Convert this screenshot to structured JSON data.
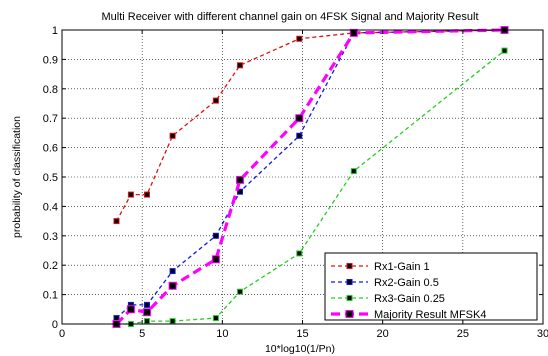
{
  "chart_data": {
    "type": "line",
    "title": "Multi Receiver with different channel gain on 4FSK Signal and Majority Result",
    "xlabel": "10*log10(1/Pn)",
    "ylabel": "probability of classification",
    "xlim": [
      0,
      30
    ],
    "ylim": [
      0,
      1
    ],
    "xticks": [
      0,
      5,
      10,
      15,
      20,
      25,
      30
    ],
    "yticks": [
      0,
      0.1,
      0.2,
      0.3,
      0.4,
      0.5,
      0.6,
      0.7,
      0.8,
      0.9,
      1
    ],
    "xtick_labels": [
      "0",
      "5",
      "10",
      "15",
      "20",
      "25",
      "30"
    ],
    "ytick_labels": [
      "0",
      "0.1",
      "0.2",
      "0.3",
      "0.4",
      "0.5",
      "0.6",
      "0.7",
      "0.8",
      "0.9",
      "1"
    ],
    "grid": true,
    "legend_position": "bottom-right",
    "series": [
      {
        "name": "Rx1-Gain 1",
        "color": "#e01010",
        "style": "dashed",
        "marker": "square",
        "width": 1.3,
        "markersize": 5,
        "x": [
          3.4,
          4.3,
          5.3,
          6.9,
          9.6,
          11.1,
          14.8,
          18.2,
          27.6
        ],
        "y": [
          0.35,
          0.44,
          0.44,
          0.64,
          0.76,
          0.88,
          0.97,
          0.99,
          1.0
        ]
      },
      {
        "name": "Rx2-Gain 0.5",
        "color": "#1018e0",
        "style": "dashed",
        "marker": "square",
        "width": 1.3,
        "markersize": 5,
        "x": [
          3.4,
          4.3,
          5.3,
          6.9,
          9.6,
          11.1,
          14.8,
          18.2,
          27.6
        ],
        "y": [
          0.02,
          0.065,
          0.065,
          0.18,
          0.3,
          0.45,
          0.64,
          0.99,
          1.0
        ]
      },
      {
        "name": "Rx3-Gain 0.25",
        "color": "#20d020",
        "style": "dashed",
        "marker": "square",
        "width": 1.3,
        "markersize": 5,
        "x": [
          3.4,
          4.3,
          5.3,
          6.9,
          9.6,
          11.1,
          14.8,
          18.2,
          27.6
        ],
        "y": [
          0.0,
          0.0,
          0.01,
          0.01,
          0.02,
          0.11,
          0.24,
          0.52,
          0.93
        ]
      },
      {
        "name": "Majority Result MFSK4",
        "color": "#ff00ff",
        "style": "dashed",
        "marker": "square",
        "width": 3.2,
        "markersize": 7,
        "x": [
          3.4,
          4.3,
          5.3,
          6.9,
          9.6,
          11.1,
          14.8,
          18.2,
          27.6
        ],
        "y": [
          0.0,
          0.05,
          0.04,
          0.13,
          0.22,
          0.49,
          0.7,
          0.99,
          1.0
        ]
      }
    ]
  }
}
